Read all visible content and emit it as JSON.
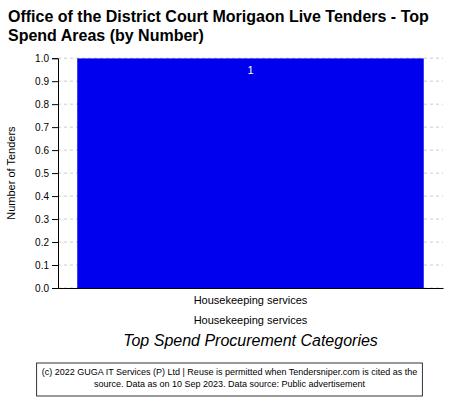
{
  "chart_data": {
    "type": "bar",
    "title": "Office of the District Court Morigaon Live Tenders - Top\nSpend Areas (by Number)",
    "categories": [
      "Housekeeping services"
    ],
    "values": [
      1
    ],
    "color": "#0000EE",
    "ylabel": "Number of Tenders",
    "xlabel": "Top Spend Procurement Categories",
    "ylim": [
      0.0,
      1.0
    ],
    "yticks": [
      {
        "value": 0,
        "label": "0.0"
      },
      0.1,
      0.2,
      0.3,
      0.4,
      0.5,
      0.6,
      0.7,
      0.8,
      0.9,
      {
        "value": 1,
        "label": "1.0"
      }
    ],
    "grid": true,
    "data_labels": true,
    "annotations": [
      "(c) 2022 GUGA IT Services (P) Ltd | Reuse is permitted when Tendersniper.com is cited as the",
      "source. Data as on 10 Sep 2023. Data source: Public advertisement"
    ]
  }
}
